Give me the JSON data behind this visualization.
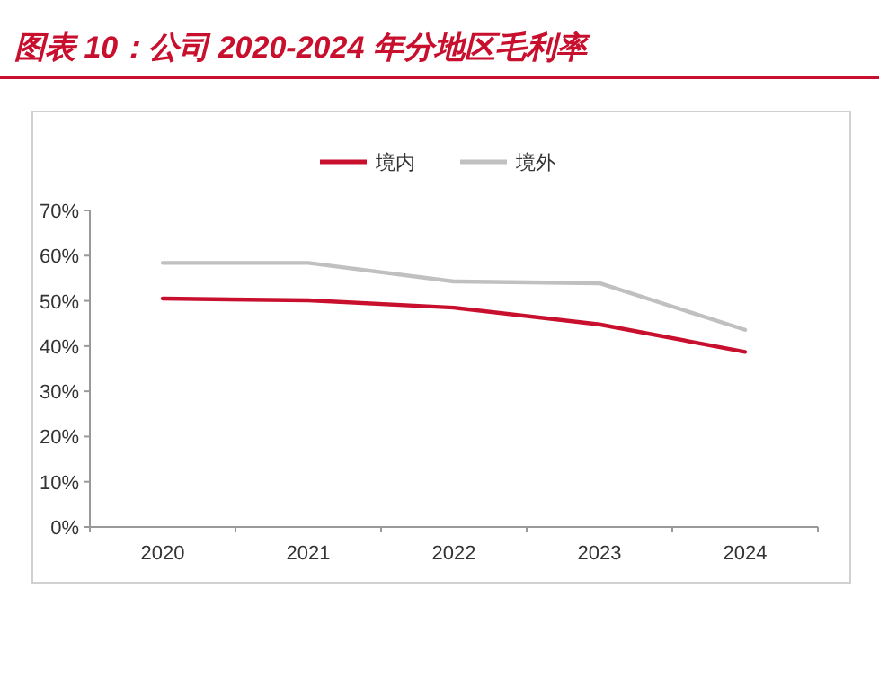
{
  "chart_data": {
    "type": "line",
    "title": "图表 10：公司 2020-2024 年分地区毛利率",
    "categories": [
      "2020",
      "2021",
      "2022",
      "2023",
      "2024"
    ],
    "series": [
      {
        "name": "境内",
        "color": "#c8102e",
        "values": [
          50.5,
          50.1,
          48.5,
          44.8,
          38.7
        ]
      },
      {
        "name": "境外",
        "color": "#c0c0c0",
        "values": [
          58.4,
          58.4,
          54.3,
          53.9,
          43.6
        ]
      }
    ],
    "ylim": [
      0,
      70
    ],
    "yticks": [
      {
        "value": 0,
        "label": "0%"
      },
      {
        "value": 10,
        "label": "10%"
      },
      {
        "value": 20,
        "label": "20%"
      },
      {
        "value": 30,
        "label": "30%"
      },
      {
        "value": 40,
        "label": "40%"
      },
      {
        "value": 50,
        "label": "50%"
      },
      {
        "value": 60,
        "label": "60%"
      },
      {
        "value": 70,
        "label": "70%"
      }
    ],
    "grid": false,
    "legend": "top",
    "marker": "none",
    "line_style": "solid"
  }
}
